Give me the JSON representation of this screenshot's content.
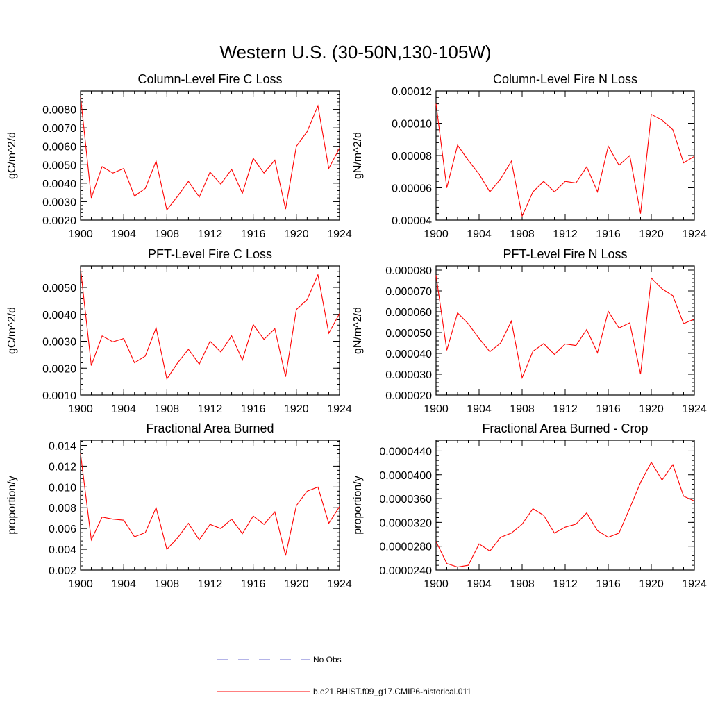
{
  "figure": {
    "title": "Western U.S. (30-50N,130-105W)"
  },
  "legend": {
    "items": [
      {
        "label": "No Obs",
        "color": "#6a6ad0",
        "dashed": true
      },
      {
        "label": "b.e21.BHIST.f09_g17.CMIP6-historical.011",
        "color": "#ff0000",
        "dashed": false
      }
    ]
  },
  "chart_data": [
    {
      "type": "line",
      "title": "Column-Level Fire C Loss",
      "ylabel": "gC/m^2/d",
      "xlim": [
        1900,
        1924
      ],
      "ylim": [
        0.002,
        0.009
      ],
      "xticks": [
        "1900",
        "1904",
        "1908",
        "1912",
        "1916",
        "1920",
        "1924"
      ],
      "yticks": [
        "0.0020",
        "0.0030",
        "0.0040",
        "0.0050",
        "0.0060",
        "0.0070",
        "0.0080"
      ],
      "color": "#ff0000",
      "x": [
        1900,
        1901,
        1902,
        1903,
        1904,
        1905,
        1906,
        1907,
        1908,
        1909,
        1910,
        1911,
        1912,
        1913,
        1914,
        1915,
        1916,
        1917,
        1918,
        1919,
        1920,
        1921,
        1922,
        1923,
        1924
      ],
      "y": [
        0.0087,
        0.0032,
        0.0049,
        0.00455,
        0.0048,
        0.0033,
        0.00372,
        0.0052,
        0.00255,
        0.0033,
        0.0041,
        0.00325,
        0.0046,
        0.00395,
        0.00475,
        0.00345,
        0.00535,
        0.00455,
        0.00525,
        0.0026,
        0.006,
        0.0068,
        0.0082,
        0.0048,
        0.0059
      ]
    },
    {
      "type": "line",
      "title": "Column-Level Fire N Loss",
      "ylabel": "gN/m^2/d",
      "xlim": [
        1900,
        1924
      ],
      "ylim": [
        4e-05,
        0.00012
      ],
      "xticks": [
        "1900",
        "1904",
        "1908",
        "1912",
        "1916",
        "1920",
        "1924"
      ],
      "yticks": [
        "0.00004",
        "0.00006",
        "0.00008",
        "0.00010",
        "0.00012"
      ],
      "color": "#ff0000",
      "x": [
        1900,
        1901,
        1902,
        1903,
        1904,
        1905,
        1906,
        1907,
        1908,
        1909,
        1910,
        1911,
        1912,
        1913,
        1914,
        1915,
        1916,
        1917,
        1918,
        1919,
        1920,
        1921,
        1922,
        1923,
        1924
      ],
      "y": [
        0.000112,
        6e-05,
        8.65e-05,
        7.7e-05,
        6.85e-05,
        5.75e-05,
        6.55e-05,
        7.65e-05,
        4.25e-05,
        5.75e-05,
        6.4e-05,
        5.75e-05,
        6.4e-05,
        6.3e-05,
        7.3e-05,
        5.75e-05,
        8.58e-05,
        7.4e-05,
        8e-05,
        4.4e-05,
        0.0001055,
        0.000102,
        9.6e-05,
        7.55e-05,
        7.95e-05
      ]
    },
    {
      "type": "line",
      "title": "PFT-Level Fire C Loss",
      "ylabel": "gC/m^2/d",
      "xlim": [
        1900,
        1924
      ],
      "ylim": [
        0.001,
        0.0058
      ],
      "xticks": [
        "1900",
        "1904",
        "1908",
        "1912",
        "1916",
        "1920",
        "1924"
      ],
      "yticks": [
        "0.0010",
        "0.0020",
        "0.0030",
        "0.0040",
        "0.0050"
      ],
      "color": "#ff0000",
      "x": [
        1900,
        1901,
        1902,
        1903,
        1904,
        1905,
        1906,
        1907,
        1908,
        1909,
        1910,
        1911,
        1912,
        1913,
        1914,
        1915,
        1916,
        1917,
        1918,
        1919,
        1920,
        1921,
        1922,
        1923,
        1924
      ],
      "y": [
        0.0057,
        0.0021,
        0.0032,
        0.00298,
        0.0031,
        0.0022,
        0.00245,
        0.0035,
        0.0016,
        0.0022,
        0.0027,
        0.00215,
        0.003,
        0.0026,
        0.0032,
        0.0023,
        0.00362,
        0.00307,
        0.00347,
        0.00168,
        0.00418,
        0.00455,
        0.00547,
        0.0033,
        0.00403
      ]
    },
    {
      "type": "line",
      "title": "PFT-Level Fire N Loss",
      "ylabel": "gN/m^2/d",
      "xlim": [
        1900,
        1924
      ],
      "ylim": [
        2e-05,
        8.2e-05
      ],
      "xticks": [
        "1900",
        "1904",
        "1908",
        "1912",
        "1916",
        "1920",
        "1924"
      ],
      "yticks": [
        "0.000020",
        "0.000030",
        "0.000040",
        "0.000050",
        "0.000060",
        "0.000070",
        "0.000080"
      ],
      "color": "#ff0000",
      "x": [
        1900,
        1901,
        1902,
        1903,
        1904,
        1905,
        1906,
        1907,
        1908,
        1909,
        1910,
        1911,
        1912,
        1913,
        1914,
        1915,
        1916,
        1917,
        1918,
        1919,
        1920,
        1921,
        1922,
        1923,
        1924
      ],
      "y": [
        7.75e-05,
        4.15e-05,
        5.95e-05,
        5.42e-05,
        4.72e-05,
        4.08e-05,
        4.5e-05,
        5.55e-05,
        2.83e-05,
        4.1e-05,
        4.47e-05,
        3.95e-05,
        4.45e-05,
        4.38e-05,
        5.15e-05,
        4.03e-05,
        6.02e-05,
        5.22e-05,
        5.47e-05,
        3e-05,
        7.62e-05,
        7.1e-05,
        6.77e-05,
        5.43e-05,
        5.65e-05
      ]
    },
    {
      "type": "line",
      "title": "Fractional Area Burned",
      "ylabel": "proportion/y",
      "xlim": [
        1900,
        1924
      ],
      "ylim": [
        0.002,
        0.0145
      ],
      "xticks": [
        "1900",
        "1904",
        "1908",
        "1912",
        "1916",
        "1920",
        "1924"
      ],
      "yticks": [
        "0.002",
        "0.004",
        "0.006",
        "0.008",
        "0.010",
        "0.012",
        "0.014"
      ],
      "color": "#ff0000",
      "x": [
        1900,
        1901,
        1902,
        1903,
        1904,
        1905,
        1906,
        1907,
        1908,
        1909,
        1910,
        1911,
        1912,
        1913,
        1914,
        1915,
        1916,
        1917,
        1918,
        1919,
        1920,
        1921,
        1922,
        1923,
        1924
      ],
      "y": [
        0.0132,
        0.0049,
        0.0071,
        0.0069,
        0.0068,
        0.0052,
        0.0056,
        0.008,
        0.004,
        0.0051,
        0.0065,
        0.0049,
        0.0064,
        0.006,
        0.0069,
        0.0055,
        0.0072,
        0.0064,
        0.0076,
        0.0034,
        0.0082,
        0.0096,
        0.01,
        0.0065,
        0.0081
      ]
    },
    {
      "type": "line",
      "title": "Fractional Area Burned - Crop",
      "ylabel": "proportion/y",
      "xlim": [
        1900,
        1924
      ],
      "ylim": [
        2.4e-05,
        4.58e-05
      ],
      "xticks": [
        "1900",
        "1904",
        "1908",
        "1912",
        "1916",
        "1920",
        "1924"
      ],
      "yticks": [
        "0.0000240",
        "0.0000280",
        "0.0000320",
        "0.0000360",
        "0.0000400",
        "0.0000440"
      ],
      "color": "#ff0000",
      "x": [
        1900,
        1901,
        1902,
        1903,
        1904,
        1905,
        1906,
        1907,
        1908,
        1909,
        1910,
        1911,
        1912,
        1913,
        1914,
        1915,
        1916,
        1917,
        1918,
        1919,
        1920,
        1921,
        1922,
        1923,
        1924
      ],
      "y": [
        2.88e-05,
        2.51e-05,
        2.45e-05,
        2.48e-05,
        2.84e-05,
        2.72e-05,
        2.95e-05,
        3.02e-05,
        3.17e-05,
        3.43e-05,
        3.32e-05,
        3.02e-05,
        3.12e-05,
        3.17e-05,
        3.36e-05,
        3.06e-05,
        2.95e-05,
        3.02e-05,
        3.44e-05,
        3.87e-05,
        4.21e-05,
        3.91e-05,
        4.17e-05,
        3.64e-05,
        3.56e-05
      ]
    }
  ]
}
